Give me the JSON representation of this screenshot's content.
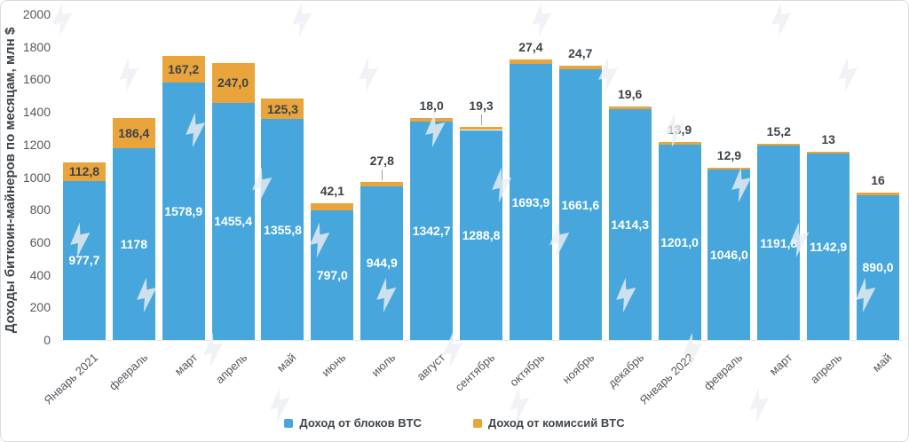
{
  "chart_data": {
    "type": "bar",
    "stacked": true,
    "title": "",
    "xlabel": "",
    "ylabel": "Доходы биткоин-майнеров по месяцам, млн $",
    "ylim": [
      0,
      2000
    ],
    "yticks": [
      0,
      200,
      400,
      600,
      800,
      1000,
      1200,
      1400,
      1600,
      1800,
      2000
    ],
    "grid": false,
    "legend_position": "bottom-center",
    "categories": [
      "Январь 2021",
      "февраль",
      "март",
      "апрель",
      "май",
      "июнь",
      "июль",
      "август",
      "сентябрь",
      "октябрь",
      "ноябрь",
      "декабрь",
      "Январь 2022",
      "февраль",
      "март",
      "апрель",
      "май"
    ],
    "series": [
      {
        "name": "Доход от блоков BTC",
        "color": "#47a7dc",
        "values": [
          977.7,
          1178,
          1578.9,
          1455.4,
          1355.8,
          797.0,
          944.9,
          1342.7,
          1288.8,
          1693.9,
          1661.6,
          1414.3,
          1201.0,
          1046.0,
          1191.8,
          1142.9,
          890.0
        ],
        "labels": [
          "977,7",
          "1178",
          "1578,9",
          "1455,4",
          "1355,8",
          "797,0",
          "944,9",
          "1342,7",
          "1288,8",
          "1693,9",
          "1661,6",
          "1414,3",
          "1201,0",
          "1046,0",
          "1191,8",
          "1142,9",
          "890,0"
        ]
      },
      {
        "name": "Доход от комиссий BTC",
        "color": "#e9a43c",
        "values": [
          112.8,
          186.4,
          167.2,
          247.0,
          125.3,
          42.1,
          27.8,
          18.0,
          19.3,
          27.4,
          24.7,
          19.6,
          13.9,
          12.9,
          15.2,
          13,
          16
        ],
        "labels": [
          "112,8",
          "186,4",
          "167,2",
          "247,0",
          "125,3",
          "42,1",
          "27,8",
          "18,0",
          "19,3",
          "27,4",
          "24,7",
          "19,6",
          "13,9",
          "12,9",
          "15,2",
          "13",
          "16"
        ]
      }
    ],
    "fee_label_leader_indices": [
      6,
      8
    ]
  },
  "colors": {
    "background": "#ffffff",
    "card_border": "#d9dcdf",
    "axis_text": "#54595e",
    "title_text": "#3b4146",
    "bar_blue": "#47a7dc",
    "bar_orange": "#e9a43c",
    "value_label_on_bar": "#ffffff",
    "value_label_dark": "#3d4348",
    "baseline": "#e3e6e8",
    "watermark": "#edeff2"
  }
}
